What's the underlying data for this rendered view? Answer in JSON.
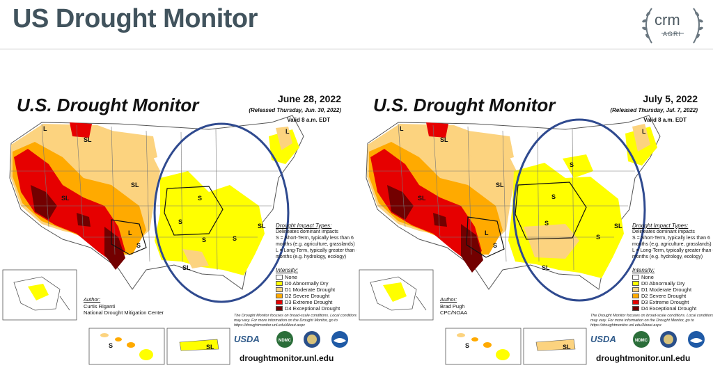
{
  "slide": {
    "title": "US Drought Monitor",
    "logo_text": "crm",
    "logo_sub": "AGRI"
  },
  "maps": [
    {
      "title": "U.S. Drought Monitor",
      "date": "June 28, 2022",
      "released": "(Released Thursday, Jun. 30, 2022)",
      "valid": "Valid 8 a.m. EDT",
      "author_label": "Author:",
      "author_name": "Curtis Riganti",
      "author_org": "National Drought Mitigation Center",
      "labels": [
        "L",
        "SL",
        "SL",
        "SL",
        "L",
        "S",
        "S",
        "S",
        "S",
        "SL",
        "S",
        "SL",
        "L",
        "SL",
        "S"
      ]
    },
    {
      "title": "U.S. Drought Monitor",
      "date": "July 5, 2022",
      "released": "(Released Thursday, Jul. 7, 2022)",
      "valid": "Valid 8 a.m. EDT",
      "author_label": "Author:",
      "author_name": "Brad Pugh",
      "author_org": "CPC/NOAA",
      "labels": [
        "L",
        "SL",
        "SL",
        "SL",
        "L",
        "S",
        "S",
        "S",
        "SL",
        "S",
        "S",
        "L",
        "SL",
        "SL",
        "S"
      ]
    }
  ],
  "impact": {
    "title": "Drought Impact Types:",
    "delineates": "Delineates dominant impacts",
    "short_term": "S = Short-Term, typically less than 6 months (e.g. agriculture, grasslands)",
    "long_term": "L = Long-Term, typically greater than 6 months (e.g. hydrology, ecology)"
  },
  "legend": {
    "title": "Intensity:",
    "items": [
      {
        "label": "None",
        "color": "#ffffff"
      },
      {
        "label": "D0 Abnormally Dry",
        "color": "#ffff00"
      },
      {
        "label": "D1 Moderate Drought",
        "color": "#fcd37f"
      },
      {
        "label": "D2 Severe Drought",
        "color": "#ffaa00"
      },
      {
        "label": "D3 Extreme Drought",
        "color": "#e60000"
      },
      {
        "label": "D4 Exceptional Drought",
        "color": "#730000"
      }
    ]
  },
  "note": "The Drought Monitor focuses on broad-scale conditions. Local conditions may vary. For more information on the Drought Monitor, go to https://droughtmonitor.unl.edu/About.aspx",
  "agencies": {
    "usda": "USDA",
    "ndmc": "NDMC"
  },
  "website": "droughtmonitor.unl.edu",
  "highlight_color": "#2f4a8f"
}
